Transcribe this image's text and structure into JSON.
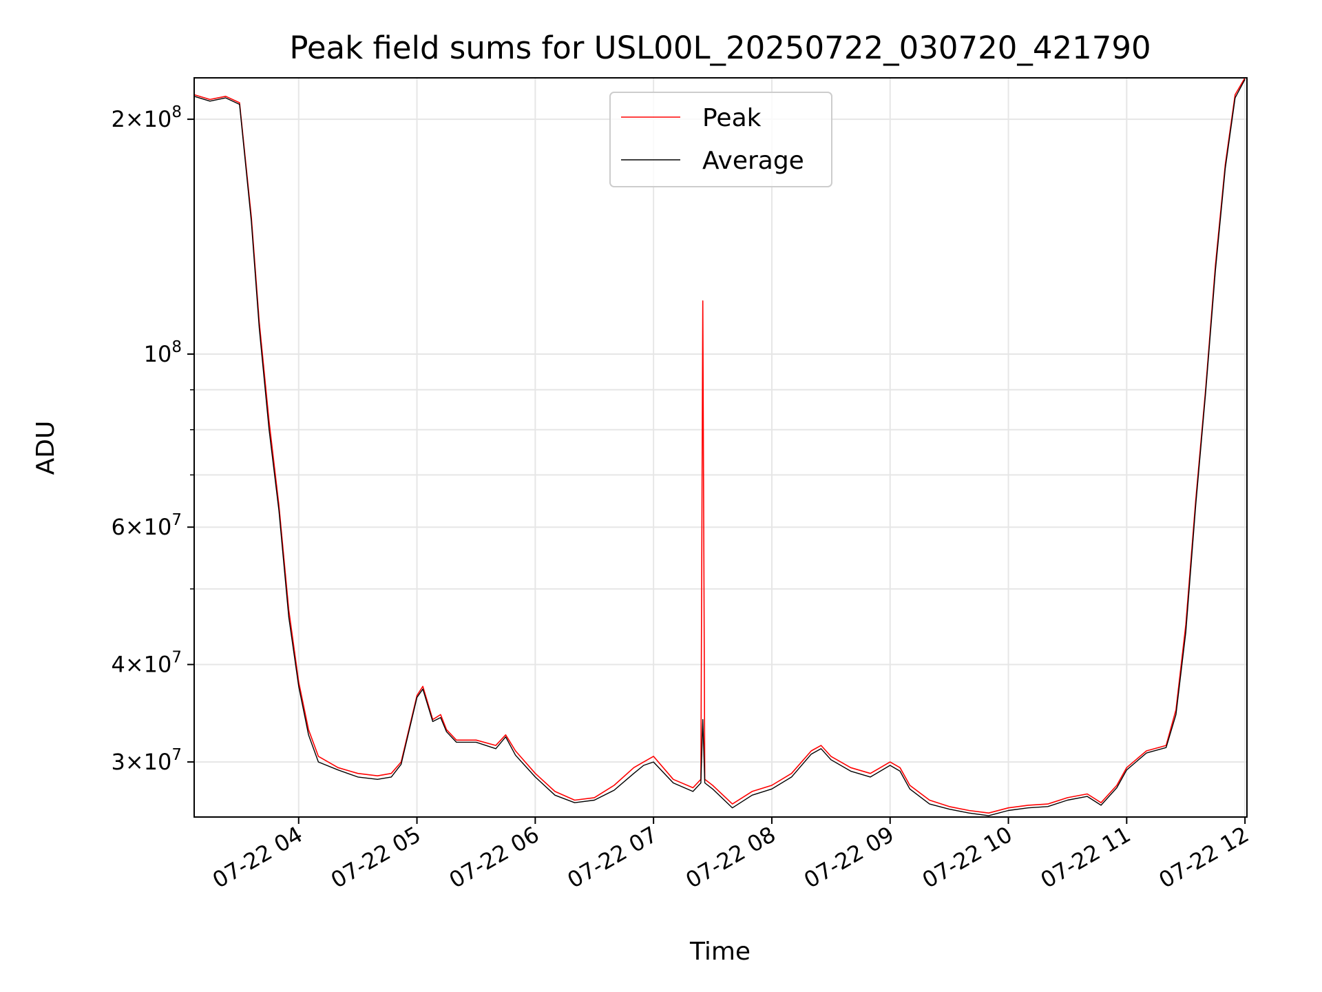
{
  "chart_data": {
    "type": "line",
    "title": "Peak field sums for USL00L_20250722_030720_421790",
    "xlabel": "Time",
    "ylabel": "ADU",
    "yscale": "log",
    "grid": true,
    "legend_position": "upper center",
    "xlim": [
      "2025-07-22 03:07",
      "2025-07-22 12:01"
    ],
    "ylim": [
      25500000,
      226000000
    ],
    "x_ticks": [
      {
        "value": "2025-07-22 04:00",
        "label": "07-22 04"
      },
      {
        "value": "2025-07-22 05:00",
        "label": "07-22 05"
      },
      {
        "value": "2025-07-22 06:00",
        "label": "07-22 06"
      },
      {
        "value": "2025-07-22 07:00",
        "label": "07-22 07"
      },
      {
        "value": "2025-07-22 08:00",
        "label": "07-22 08"
      },
      {
        "value": "2025-07-22 09:00",
        "label": "07-22 09"
      },
      {
        "value": "2025-07-22 10:00",
        "label": "07-22 10"
      },
      {
        "value": "2025-07-22 11:00",
        "label": "07-22 11"
      },
      {
        "value": "2025-07-22 12:00",
        "label": "07-22 12"
      }
    ],
    "y_ticks": [
      {
        "value": 30000000,
        "base": "3×10",
        "exp": "7"
      },
      {
        "value": 40000000,
        "base": "4×10",
        "exp": "7"
      },
      {
        "value": 60000000,
        "base": "6×10",
        "exp": "7"
      },
      {
        "value": 100000000,
        "base": "10",
        "exp": "8"
      },
      {
        "value": 200000000,
        "base": "2×10",
        "exp": "8"
      }
    ],
    "y_minor_ticks": [
      50000000,
      70000000,
      80000000,
      90000000
    ],
    "series": [
      {
        "name": "Peak",
        "color": "#ff0000",
        "x": [
          "2025-07-22 03:07",
          "2025-07-22 03:15",
          "2025-07-22 03:23",
          "2025-07-22 03:30",
          "2025-07-22 03:36",
          "2025-07-22 03:40",
          "2025-07-22 03:45",
          "2025-07-22 03:50",
          "2025-07-22 03:55",
          "2025-07-22 04:00",
          "2025-07-22 04:05",
          "2025-07-22 04:10",
          "2025-07-22 04:20",
          "2025-07-22 04:30",
          "2025-07-22 04:40",
          "2025-07-22 04:47",
          "2025-07-22 04:52",
          "2025-07-22 05:00",
          "2025-07-22 05:03",
          "2025-07-22 05:08",
          "2025-07-22 05:12",
          "2025-07-22 05:15",
          "2025-07-22 05:20",
          "2025-07-22 05:30",
          "2025-07-22 05:40",
          "2025-07-22 05:45",
          "2025-07-22 05:50",
          "2025-07-22 06:00",
          "2025-07-22 06:10",
          "2025-07-22 06:20",
          "2025-07-22 06:30",
          "2025-07-22 06:40",
          "2025-07-22 06:50",
          "2025-07-22 06:55",
          "2025-07-22 07:00",
          "2025-07-22 07:10",
          "2025-07-22 07:20",
          "2025-07-22 07:24",
          "2025-07-22 07:25",
          "2025-07-22 07:26",
          "2025-07-22 07:30",
          "2025-07-22 07:40",
          "2025-07-22 07:50",
          "2025-07-22 08:00",
          "2025-07-22 08:10",
          "2025-07-22 08:20",
          "2025-07-22 08:25",
          "2025-07-22 08:30",
          "2025-07-22 08:40",
          "2025-07-22 08:50",
          "2025-07-22 09:00",
          "2025-07-22 09:05",
          "2025-07-22 09:10",
          "2025-07-22 09:20",
          "2025-07-22 09:30",
          "2025-07-22 09:40",
          "2025-07-22 09:50",
          "2025-07-22 10:00",
          "2025-07-22 10:10",
          "2025-07-22 10:20",
          "2025-07-22 10:30",
          "2025-07-22 10:40",
          "2025-07-22 10:47",
          "2025-07-22 10:55",
          "2025-07-22 11:00",
          "2025-07-22 11:10",
          "2025-07-22 11:20",
          "2025-07-22 11:25",
          "2025-07-22 11:30",
          "2025-07-22 11:35",
          "2025-07-22 11:40",
          "2025-07-22 11:45",
          "2025-07-22 11:50",
          "2025-07-22 11:55",
          "2025-07-22 12:00"
        ],
        "y": [
          215000000,
          212000000,
          214000000,
          210000000,
          150000000,
          110000000,
          82000000,
          64000000,
          47000000,
          38000000,
          33000000,
          30500000,
          29500000,
          29000000,
          28800000,
          29000000,
          30000000,
          36500000,
          37500000,
          34000000,
          34500000,
          33000000,
          32000000,
          32000000,
          31500000,
          32500000,
          31000000,
          29000000,
          27500000,
          26800000,
          27000000,
          28000000,
          29500000,
          30000000,
          30500000,
          28500000,
          27800000,
          28500000,
          117000000,
          28500000,
          28000000,
          26500000,
          27500000,
          28000000,
          29000000,
          31000000,
          31500000,
          30500000,
          29500000,
          29000000,
          30000000,
          29500000,
          28000000,
          26800000,
          26300000,
          26000000,
          25800000,
          26200000,
          26400000,
          26500000,
          27000000,
          27300000,
          26600000,
          28000000,
          29500000,
          31000000,
          31500000,
          35000000,
          45000000,
          65000000,
          90000000,
          130000000,
          175000000,
          215000000,
          226000000
        ]
      },
      {
        "name": "Average",
        "color": "#000000",
        "x": [
          "2025-07-22 03:07",
          "2025-07-22 03:15",
          "2025-07-22 03:23",
          "2025-07-22 03:30",
          "2025-07-22 03:36",
          "2025-07-22 03:40",
          "2025-07-22 03:45",
          "2025-07-22 03:50",
          "2025-07-22 03:55",
          "2025-07-22 04:00",
          "2025-07-22 04:05",
          "2025-07-22 04:10",
          "2025-07-22 04:20",
          "2025-07-22 04:30",
          "2025-07-22 04:40",
          "2025-07-22 04:47",
          "2025-07-22 04:52",
          "2025-07-22 05:00",
          "2025-07-22 05:03",
          "2025-07-22 05:08",
          "2025-07-22 05:12",
          "2025-07-22 05:15",
          "2025-07-22 05:20",
          "2025-07-22 05:30",
          "2025-07-22 05:40",
          "2025-07-22 05:45",
          "2025-07-22 05:50",
          "2025-07-22 06:00",
          "2025-07-22 06:10",
          "2025-07-22 06:20",
          "2025-07-22 06:30",
          "2025-07-22 06:40",
          "2025-07-22 06:50",
          "2025-07-22 06:55",
          "2025-07-22 07:00",
          "2025-07-22 07:10",
          "2025-07-22 07:20",
          "2025-07-22 07:24",
          "2025-07-22 07:25",
          "2025-07-22 07:26",
          "2025-07-22 07:30",
          "2025-07-22 07:40",
          "2025-07-22 07:50",
          "2025-07-22 08:00",
          "2025-07-22 08:10",
          "2025-07-22 08:20",
          "2025-07-22 08:25",
          "2025-07-22 08:30",
          "2025-07-22 08:40",
          "2025-07-22 08:50",
          "2025-07-22 09:00",
          "2025-07-22 09:05",
          "2025-07-22 09:10",
          "2025-07-22 09:20",
          "2025-07-22 09:30",
          "2025-07-22 09:40",
          "2025-07-22 09:50",
          "2025-07-22 10:00",
          "2025-07-22 10:10",
          "2025-07-22 10:20",
          "2025-07-22 10:30",
          "2025-07-22 10:40",
          "2025-07-22 10:47",
          "2025-07-22 10:55",
          "2025-07-22 11:00",
          "2025-07-22 11:10",
          "2025-07-22 11:20",
          "2025-07-22 11:25",
          "2025-07-22 11:30",
          "2025-07-22 11:35",
          "2025-07-22 11:40",
          "2025-07-22 11:45",
          "2025-07-22 11:50",
          "2025-07-22 11:55",
          "2025-07-22 12:00"
        ],
        "y": [
          214000000,
          211000000,
          213000000,
          209000000,
          148000000,
          108000000,
          80000000,
          63000000,
          46000000,
          37500000,
          32500000,
          30000000,
          29300000,
          28700000,
          28500000,
          28700000,
          29800000,
          36300000,
          37200000,
          33800000,
          34200000,
          32800000,
          31800000,
          31800000,
          31200000,
          32300000,
          30600000,
          28700000,
          27200000,
          26600000,
          26800000,
          27600000,
          29000000,
          29700000,
          30000000,
          28200000,
          27500000,
          28200000,
          34000000,
          28200000,
          27700000,
          26200000,
          27200000,
          27700000,
          28700000,
          30700000,
          31200000,
          30200000,
          29200000,
          28700000,
          29700000,
          29200000,
          27700000,
          26500000,
          26100000,
          25800000,
          25600000,
          26000000,
          26200000,
          26300000,
          26800000,
          27100000,
          26400000,
          27800000,
          29300000,
          30800000,
          31300000,
          34500000,
          44000000,
          64000000,
          89000000,
          128000000,
          173000000,
          213000000,
          225000000
        ]
      }
    ]
  }
}
